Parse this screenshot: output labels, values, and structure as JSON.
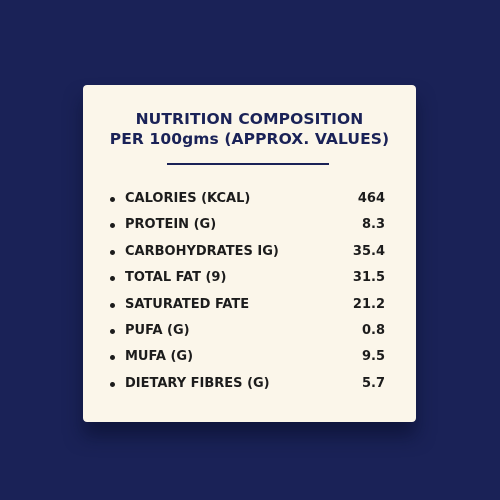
{
  "colors": {
    "background": "#1a2257",
    "card": "#fbf6ea",
    "title": "#1a2257",
    "text": "#1c1c1c"
  },
  "title": {
    "line1": "NUTRITION COMPOSITION",
    "line2": "PER 100gms (APPROX. VALUES)"
  },
  "rows": [
    {
      "label": "CALORIES (KCAL)",
      "value": "464"
    },
    {
      "label": "PROTEIN (G)",
      "value": "8.3"
    },
    {
      "label": "CARBOHYDRATES IG)",
      "value": "35.4"
    },
    {
      "label": "TOTAL FAT (9)",
      "value": "31.5"
    },
    {
      "label": "SATURATED FATE",
      "value": "21.2"
    },
    {
      "label": "PUFA (G)",
      "value": "0.8"
    },
    {
      "label": "MUFA (G)",
      "value": "9.5"
    },
    {
      "label": "DIETARY FIBRES (G)",
      "value": "5.7"
    }
  ]
}
